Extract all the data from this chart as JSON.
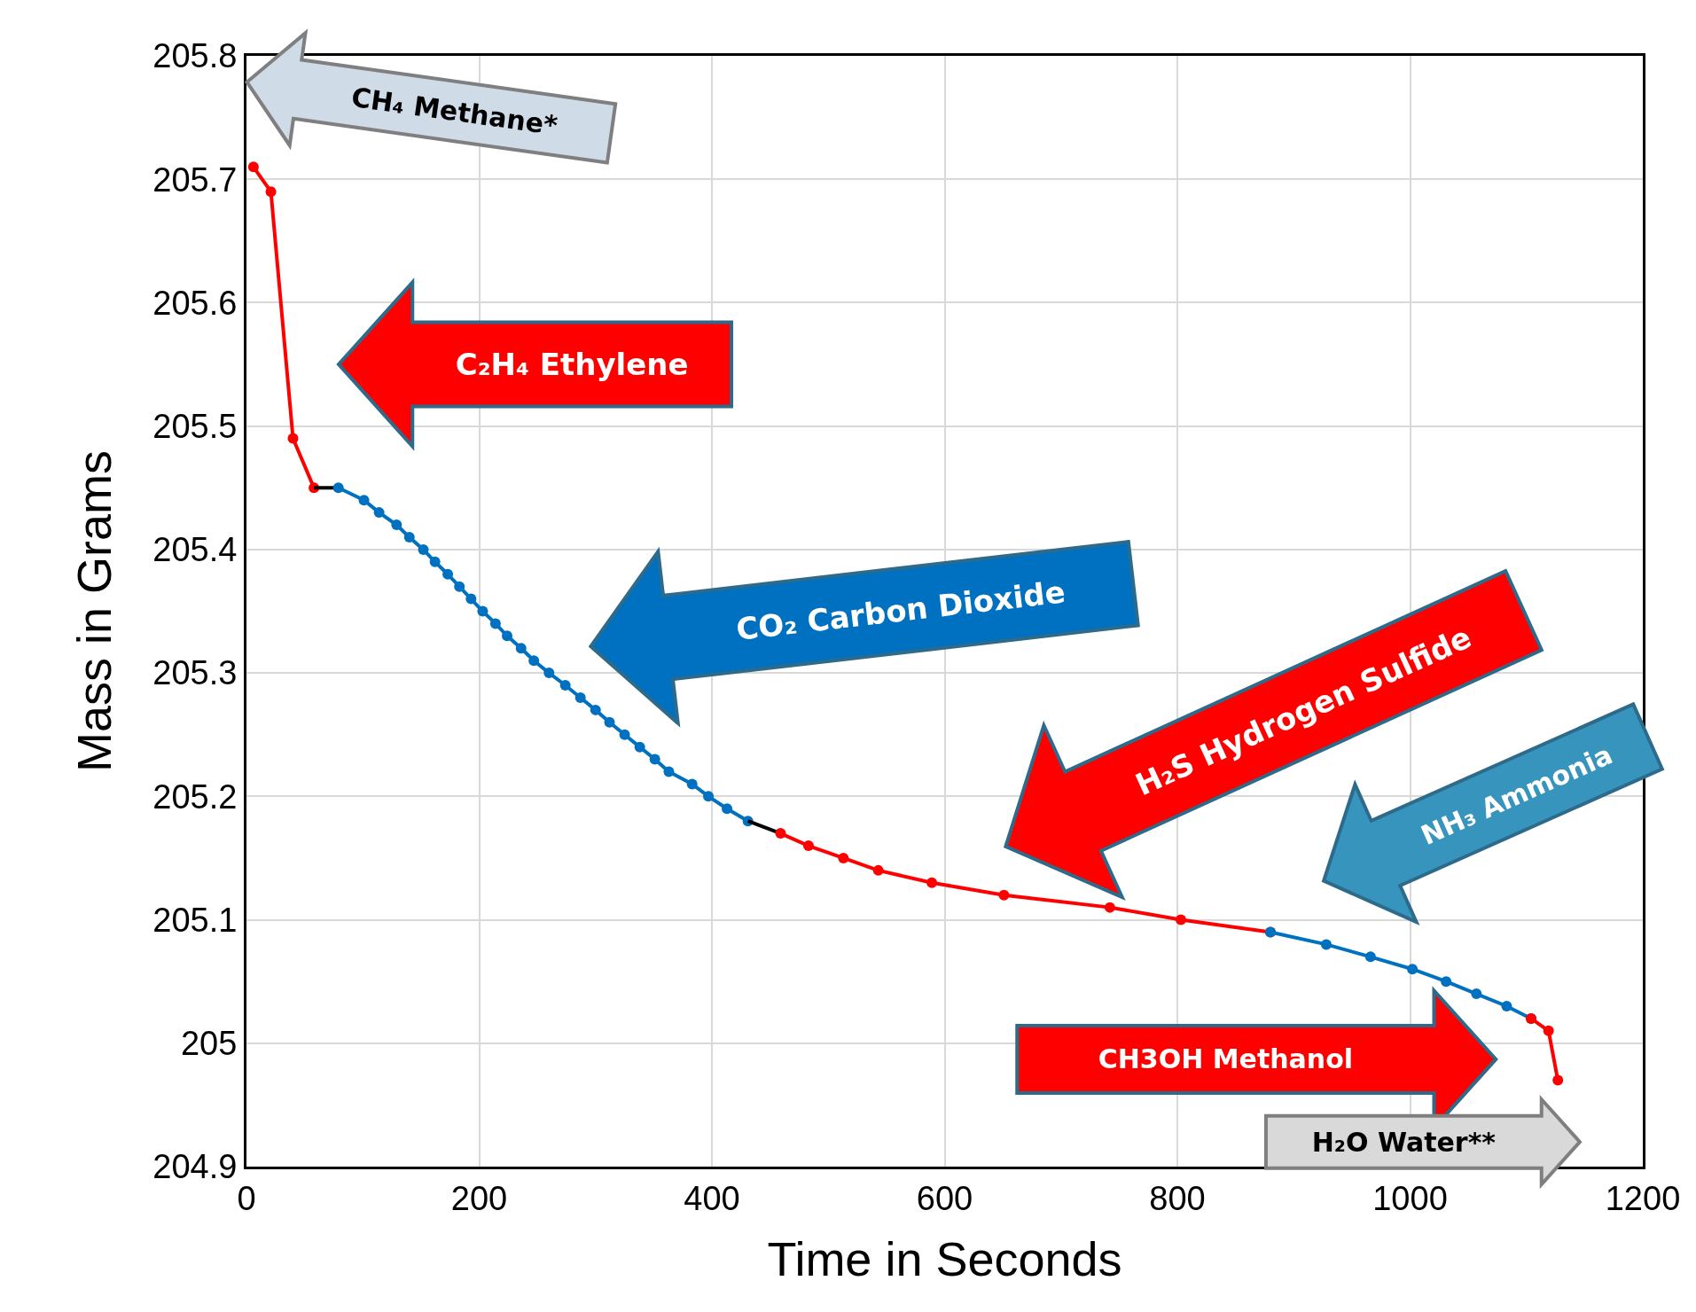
{
  "chart_data": {
    "type": "line",
    "xlabel": "Time in Seconds",
    "ylabel": "Mass in Grams",
    "xlim": [
      0,
      1200
    ],
    "xticks": [
      0,
      200,
      400,
      600,
      800,
      1000,
      1200
    ],
    "ylim": [
      204.9,
      205.8
    ],
    "yticks": [
      204.9,
      205,
      205.1,
      205.2,
      205.3,
      205.4,
      205.5,
      205.6,
      205.7,
      205.8
    ],
    "grid": true,
    "marker": "circle",
    "line_style": "solid",
    "series": [
      {
        "color": "#ff0000",
        "x": [
          6,
          21,
          40,
          58
        ],
        "values": [
          205.71,
          205.69,
          205.49,
          205.45
        ]
      },
      {
        "color": "#000000",
        "marker": "none",
        "x": [
          58,
          79
        ],
        "values": [
          205.45,
          205.45
        ]
      },
      {
        "color": "#0070c0",
        "x": [
          79,
          101,
          114,
          129,
          140,
          152,
          162,
          173,
          183,
          193,
          203,
          214,
          224,
          236,
          247,
          260,
          274,
          287,
          300,
          312,
          325,
          338,
          351,
          363,
          383,
          397,
          413,
          431
        ],
        "values": [
          205.45,
          205.44,
          205.43,
          205.42,
          205.41,
          205.4,
          205.39,
          205.38,
          205.37,
          205.36,
          205.35,
          205.34,
          205.33,
          205.32,
          205.31,
          205.3,
          205.29,
          205.28,
          205.27,
          205.26,
          205.25,
          205.24,
          205.23,
          205.22,
          205.21,
          205.2,
          205.19,
          205.18
        ]
      },
      {
        "color": "#000000",
        "marker": "none",
        "x": [
          431,
          459
        ],
        "values": [
          205.18,
          205.17
        ]
      },
      {
        "color": "#ff0000",
        "x": [
          459,
          483,
          513,
          543,
          589,
          651,
          742,
          803,
          880
        ],
        "values": [
          205.17,
          205.16,
          205.15,
          205.14,
          205.13,
          205.12,
          205.11,
          205.1,
          205.09
        ]
      },
      {
        "color": "#0070c0",
        "x": [
          880,
          928,
          966,
          1002,
          1031,
          1057,
          1083,
          1104
        ],
        "values": [
          205.09,
          205.08,
          205.07,
          205.06,
          205.05,
          205.04,
          205.03,
          205.02
        ]
      },
      {
        "color": "#ff0000",
        "x": [
          1104,
          1119,
          1127
        ],
        "values": [
          205.02,
          205.01,
          204.97
        ]
      }
    ],
    "annotations": [
      "CH₄ Methane*",
      "C₂H₄ Ethylene",
      "CO₂  Carbon Dioxide",
      "H₂S Hydrogen Sulfide",
      "NH₃ Ammonia",
      "CH3OH  Methanol",
      "H₂O  Water**"
    ]
  }
}
